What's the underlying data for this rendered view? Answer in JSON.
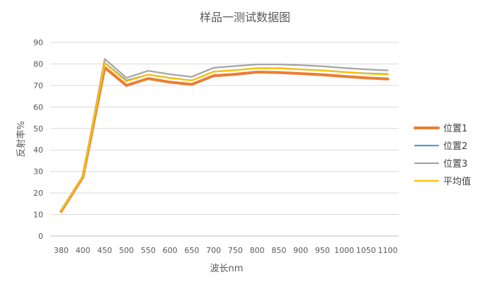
{
  "chart_data": {
    "type": "line",
    "title": "样品一测试数据图",
    "xlabel": "波长nm",
    "ylabel": "反射率%",
    "ylim": [
      0,
      90
    ],
    "yticks": [
      0,
      10,
      20,
      30,
      40,
      50,
      60,
      70,
      80,
      90
    ],
    "categories": [
      "380",
      "400",
      "450",
      "500",
      "550",
      "600",
      "650",
      "700",
      "750",
      "800",
      "850",
      "900",
      "950",
      "1000",
      "1050",
      "1100"
    ],
    "grid": true,
    "legend_position": "right",
    "series": [
      {
        "name": "位置1",
        "color": "#ed7d31",
        "values": [
          11.5,
          27.5,
          78.3,
          70.0,
          73.2,
          71.5,
          70.5,
          74.5,
          75.2,
          76.2,
          76.0,
          75.5,
          75.0,
          74.2,
          73.5,
          73.0
        ]
      },
      {
        "name": "位置2",
        "color": "#5b9bd5",
        "values": [
          12.0,
          28.0,
          80.5,
          72.3,
          75.0,
          73.5,
          72.3,
          76.4,
          77.1,
          78.0,
          78.0,
          77.5,
          77.0,
          76.2,
          75.6,
          75.3
        ]
      },
      {
        "name": "位置3",
        "color": "#a5a5a5",
        "values": [
          12.0,
          28.0,
          82.3,
          73.5,
          76.8,
          75.2,
          74.0,
          78.2,
          79.0,
          79.8,
          79.8,
          79.4,
          78.9,
          78.1,
          77.5,
          77.0
        ]
      },
      {
        "name": "平均值",
        "color": "#ffc000",
        "values": [
          11.8,
          27.8,
          80.4,
          71.9,
          75.0,
          73.4,
          72.3,
          76.4,
          77.1,
          78.0,
          77.9,
          77.5,
          77.0,
          76.2,
          75.5,
          75.1
        ]
      }
    ]
  }
}
